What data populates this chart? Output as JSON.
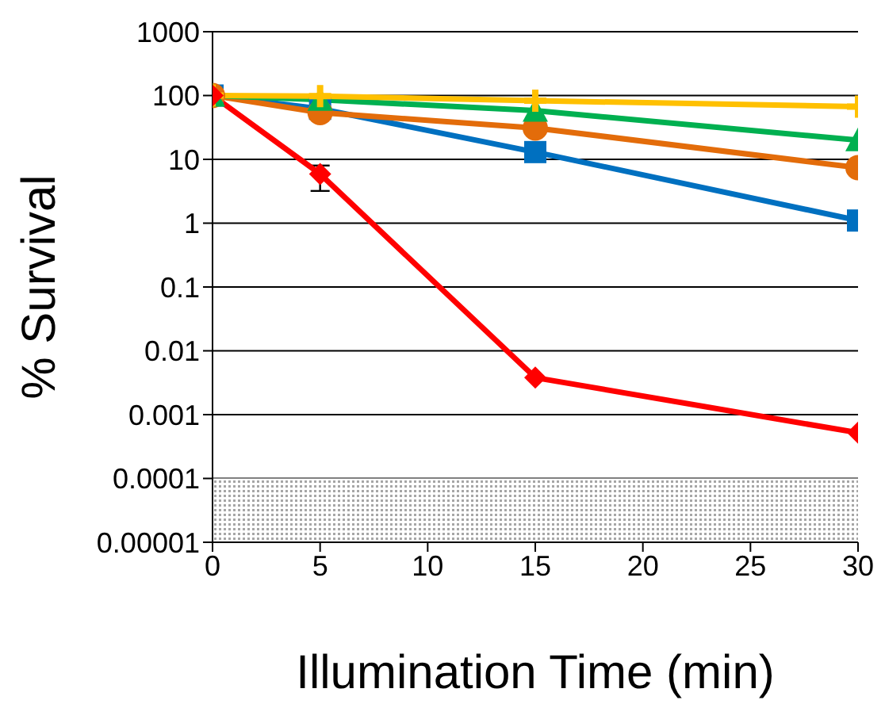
{
  "chart_data": {
    "type": "line",
    "xlabel": "Illumination Time (min)",
    "ylabel": "% Survival",
    "x": [
      0,
      5,
      15,
      30
    ],
    "series": [
      {
        "color": "#0070c0",
        "marker": "square",
        "values": [
          100,
          62,
          13,
          1.1
        ]
      },
      {
        "color": "#e36c0a",
        "marker": "circle",
        "values": [
          100,
          54,
          31,
          7.4
        ]
      },
      {
        "color": "#00b050",
        "marker": "triangle",
        "values": [
          100,
          86,
          58,
          20
        ]
      },
      {
        "color": "#ffc000",
        "marker": "cross",
        "values": [
          100,
          98,
          83,
          67
        ]
      },
      {
        "color": "#ff0000",
        "marker": "diamond",
        "values": [
          100,
          5.9,
          0.0038,
          0.00052
        ],
        "errors": [
          null,
          [
            3.2,
            8
          ],
          null,
          null
        ]
      }
    ],
    "log": "y",
    "xlim": [
      0,
      30
    ],
    "xticks": [
      0,
      5,
      10,
      15,
      20,
      25,
      30
    ],
    "ylim": [
      1e-05,
      1000
    ],
    "yticks": [
      {
        "value": 1e-05,
        "label": "0.00001"
      },
      0.0001,
      0.001,
      0.01,
      0.1,
      1,
      10,
      100,
      1000
    ],
    "grid": "y",
    "legend": false,
    "bands": [
      {
        "axis": "y",
        "from": 1e-05,
        "to": 0.0001,
        "color": "#a6a6a6"
      }
    ]
  }
}
